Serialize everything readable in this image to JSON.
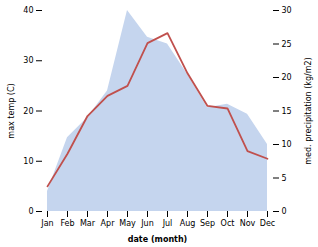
{
  "chart_data": {
    "type": "line",
    "categories": [
      "Jan",
      "Feb",
      "Mar",
      "Apr",
      "May",
      "Jun",
      "Jul",
      "Aug",
      "Sep",
      "Oct",
      "Nov",
      "Dec"
    ],
    "xlabel": "date (month)",
    "ylabel": "max temp (C)",
    "y2label": "med. precipitation (kg/m2)",
    "ylim": [
      0,
      40
    ],
    "yticks": [
      0,
      10,
      20,
      30,
      40
    ],
    "y2lim": [
      0,
      30
    ],
    "y2ticks": [
      0,
      5,
      10,
      15,
      20,
      25,
      30
    ],
    "series": [
      {
        "type": "area",
        "axis": "y2",
        "color": "#c5d5ee",
        "values": [
          3.0,
          11.0,
          14.0,
          18.0,
          30.0,
          26.0,
          25.0,
          20.5,
          15.5,
          16.0,
          14.5,
          10.0
        ]
      },
      {
        "type": "line",
        "color": "#c0504d",
        "values": [
          5.0,
          11.5,
          19.0,
          23.0,
          25.0,
          33.5,
          35.5,
          27.5,
          21.0,
          20.5,
          12.0,
          10.5
        ]
      }
    ]
  }
}
